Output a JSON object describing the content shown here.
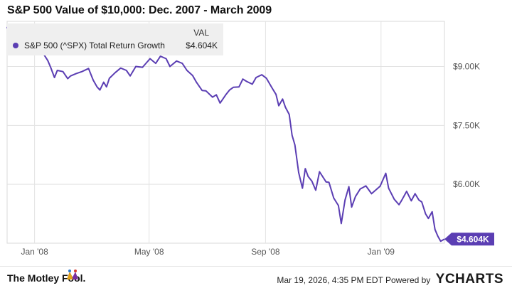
{
  "title": "S&P 500 Value of $10,000: Dec. 2007 - March 2009",
  "legend": {
    "header": "VAL",
    "series_name": "S&P 500 (^SPX) Total Return Growth",
    "series_value": "$4.604K"
  },
  "end_label": "$4.604K",
  "footer": {
    "brand": "The Motley Fool.",
    "timestamp": "Mar 19, 2026, 4:35 PM EDT",
    "powered_by": "Powered by",
    "ycharts": "YCHARTS"
  },
  "colors": {
    "line": "#5b3eb3",
    "grid": "#e3e3e3",
    "axis_text": "#555555"
  },
  "chart_data": {
    "type": "line",
    "title": "S&P 500 Value of $10,000: Dec. 2007 - March 2009",
    "xlabel": "",
    "ylabel": "",
    "x_ticks": [
      "Jan '08",
      "May '08",
      "Sep '08",
      "Jan '09"
    ],
    "y_ticks": [
      {
        "value": 9000,
        "label": "$9.00K"
      },
      {
        "value": 7500,
        "label": "$7.50K"
      },
      {
        "value": 6000,
        "label": "$6.00K"
      }
    ],
    "ylim": [
      4500,
      10150
    ],
    "xlim": [
      "2007-12-03",
      "2009-03-09"
    ],
    "grid": true,
    "legend_position": "top-left",
    "series": [
      {
        "name": "S&P 500 (^SPX) Total Return Growth",
        "points": [
          [
            "2007-12-03",
            10000
          ],
          [
            "2007-12-07",
            9810
          ],
          [
            "2007-12-11",
            9880
          ],
          [
            "2007-12-14",
            9760
          ],
          [
            "2007-12-19",
            9820
          ],
          [
            "2007-12-26",
            9790
          ],
          [
            "2007-12-31",
            9640
          ],
          [
            "2008-01-04",
            9620
          ],
          [
            "2008-01-08",
            9420
          ],
          [
            "2008-01-11",
            9300
          ],
          [
            "2008-01-15",
            9150
          ],
          [
            "2008-01-18",
            8980
          ],
          [
            "2008-01-22",
            8720
          ],
          [
            "2008-01-25",
            8900
          ],
          [
            "2008-01-31",
            8870
          ],
          [
            "2008-02-05",
            8690
          ],
          [
            "2008-02-08",
            8760
          ],
          [
            "2008-02-14",
            8820
          ],
          [
            "2008-02-20",
            8870
          ],
          [
            "2008-02-27",
            8950
          ],
          [
            "2008-03-03",
            8650
          ],
          [
            "2008-03-07",
            8480
          ],
          [
            "2008-03-10",
            8400
          ],
          [
            "2008-03-14",
            8600
          ],
          [
            "2008-03-17",
            8480
          ],
          [
            "2008-03-20",
            8700
          ],
          [
            "2008-03-26",
            8840
          ],
          [
            "2008-04-01",
            8960
          ],
          [
            "2008-04-07",
            8900
          ],
          [
            "2008-04-11",
            8760
          ],
          [
            "2008-04-17",
            9000
          ],
          [
            "2008-04-24",
            8980
          ],
          [
            "2008-05-02",
            9200
          ],
          [
            "2008-05-08",
            9080
          ],
          [
            "2008-05-13",
            9260
          ],
          [
            "2008-05-19",
            9200
          ],
          [
            "2008-05-23",
            9000
          ],
          [
            "2008-05-30",
            9140
          ],
          [
            "2008-06-05",
            9080
          ],
          [
            "2008-06-10",
            8900
          ],
          [
            "2008-06-16",
            8770
          ],
          [
            "2008-06-20",
            8600
          ],
          [
            "2008-06-26",
            8390
          ],
          [
            "2008-06-30",
            8380
          ],
          [
            "2008-07-07",
            8220
          ],
          [
            "2008-07-11",
            8280
          ],
          [
            "2008-07-15",
            8070
          ],
          [
            "2008-07-21",
            8280
          ],
          [
            "2008-07-25",
            8400
          ],
          [
            "2008-07-29",
            8470
          ],
          [
            "2008-08-04",
            8480
          ],
          [
            "2008-08-08",
            8680
          ],
          [
            "2008-08-12",
            8620
          ],
          [
            "2008-08-18",
            8550
          ],
          [
            "2008-08-22",
            8720
          ],
          [
            "2008-08-28",
            8790
          ],
          [
            "2008-09-02",
            8700
          ],
          [
            "2008-09-08",
            8450
          ],
          [
            "2008-09-12",
            8290
          ],
          [
            "2008-09-15",
            8000
          ],
          [
            "2008-09-19",
            8170
          ],
          [
            "2008-09-22",
            7960
          ],
          [
            "2008-09-26",
            7780
          ],
          [
            "2008-09-29",
            7250
          ],
          [
            "2008-10-02",
            7000
          ],
          [
            "2008-10-06",
            6300
          ],
          [
            "2008-10-10",
            5900
          ],
          [
            "2008-10-13",
            6400
          ],
          [
            "2008-10-16",
            6200
          ],
          [
            "2008-10-20",
            6080
          ],
          [
            "2008-10-24",
            5850
          ],
          [
            "2008-10-28",
            6320
          ],
          [
            "2008-11-04",
            6060
          ],
          [
            "2008-11-07",
            6050
          ],
          [
            "2008-11-12",
            5650
          ],
          [
            "2008-11-17",
            5460
          ],
          [
            "2008-11-20",
            5000
          ],
          [
            "2008-11-24",
            5600
          ],
          [
            "2008-11-28",
            5940
          ],
          [
            "2008-12-01",
            5420
          ],
          [
            "2008-12-05",
            5690
          ],
          [
            "2008-12-10",
            5880
          ],
          [
            "2008-12-16",
            5960
          ],
          [
            "2008-12-22",
            5760
          ],
          [
            "2008-12-31",
            5950
          ],
          [
            "2009-01-06",
            6280
          ],
          [
            "2009-01-09",
            5900
          ],
          [
            "2009-01-15",
            5620
          ],
          [
            "2009-01-20",
            5480
          ],
          [
            "2009-01-23",
            5600
          ],
          [
            "2009-01-28",
            5820
          ],
          [
            "2009-02-02",
            5580
          ],
          [
            "2009-02-06",
            5760
          ],
          [
            "2009-02-10",
            5600
          ],
          [
            "2009-02-13",
            5550
          ],
          [
            "2009-02-17",
            5250
          ],
          [
            "2009-02-20",
            5130
          ],
          [
            "2009-02-24",
            5300
          ],
          [
            "2009-02-27",
            4850
          ],
          [
            "2009-03-02",
            4680
          ],
          [
            "2009-03-05",
            4550
          ],
          [
            "2009-03-09",
            4604
          ]
        ]
      }
    ]
  }
}
